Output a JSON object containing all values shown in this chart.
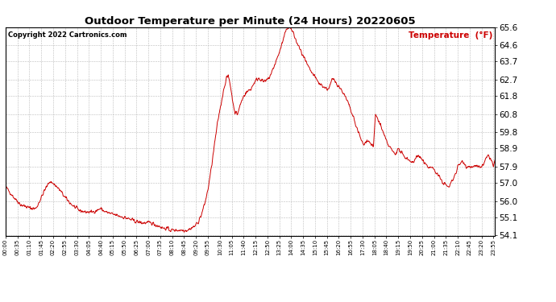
{
  "title": "Outdoor Temperature per Minute (24 Hours) 20220605",
  "copyright_text": "Copyright 2022 Cartronics.com",
  "legend_label": "Temperature  (°F)",
  "line_color": "#cc0000",
  "background_color": "#ffffff",
  "grid_color": "#bbbbbb",
  "ylim": [
    54.1,
    65.6
  ],
  "yticks": [
    54.1,
    55.1,
    56.0,
    57.0,
    57.9,
    58.9,
    59.8,
    60.8,
    61.8,
    62.7,
    63.7,
    64.6,
    65.6
  ],
  "xlabel_times": [
    "00:00",
    "00:35",
    "01:10",
    "01:45",
    "02:20",
    "02:55",
    "03:30",
    "04:05",
    "04:40",
    "05:15",
    "05:50",
    "06:25",
    "07:00",
    "07:35",
    "08:10",
    "08:45",
    "09:20",
    "09:55",
    "10:30",
    "11:05",
    "11:40",
    "12:15",
    "12:50",
    "13:25",
    "14:00",
    "14:35",
    "15:10",
    "15:45",
    "16:20",
    "16:55",
    "17:30",
    "18:05",
    "18:40",
    "19:15",
    "19:50",
    "20:25",
    "21:00",
    "21:35",
    "22:10",
    "22:45",
    "23:20",
    "23:55"
  ],
  "waypoints": [
    [
      0,
      56.8
    ],
    [
      25,
      56.2
    ],
    [
      45,
      55.8
    ],
    [
      60,
      55.7
    ],
    [
      75,
      55.6
    ],
    [
      90,
      55.6
    ],
    [
      100,
      56.0
    ],
    [
      115,
      56.6
    ],
    [
      130,
      57.1
    ],
    [
      145,
      56.9
    ],
    [
      160,
      56.6
    ],
    [
      175,
      56.2
    ],
    [
      195,
      55.8
    ],
    [
      215,
      55.5
    ],
    [
      235,
      55.4
    ],
    [
      255,
      55.4
    ],
    [
      270,
      55.5
    ],
    [
      280,
      55.6
    ],
    [
      285,
      55.5
    ],
    [
      295,
      55.4
    ],
    [
      310,
      55.3
    ],
    [
      330,
      55.2
    ],
    [
      350,
      55.1
    ],
    [
      365,
      55.0
    ],
    [
      380,
      54.9
    ],
    [
      400,
      54.8
    ],
    [
      415,
      54.8
    ],
    [
      430,
      54.8
    ],
    [
      440,
      54.7
    ],
    [
      455,
      54.6
    ],
    [
      465,
      54.5
    ],
    [
      475,
      54.5
    ],
    [
      485,
      54.4
    ],
    [
      495,
      54.4
    ],
    [
      505,
      54.4
    ],
    [
      515,
      54.4
    ],
    [
      525,
      54.4
    ],
    [
      535,
      54.4
    ],
    [
      545,
      54.5
    ],
    [
      555,
      54.6
    ],
    [
      565,
      54.8
    ],
    [
      575,
      55.2
    ],
    [
      585,
      55.8
    ],
    [
      595,
      56.6
    ],
    [
      605,
      57.8
    ],
    [
      615,
      59.2
    ],
    [
      625,
      60.5
    ],
    [
      635,
      61.5
    ],
    [
      643,
      62.3
    ],
    [
      650,
      62.8
    ],
    [
      655,
      62.9
    ],
    [
      658,
      62.7
    ],
    [
      662,
      62.3
    ],
    [
      668,
      61.5
    ],
    [
      675,
      60.9
    ],
    [
      682,
      60.8
    ],
    [
      690,
      61.3
    ],
    [
      700,
      61.8
    ],
    [
      708,
      62.0
    ],
    [
      715,
      62.1
    ],
    [
      722,
      62.2
    ],
    [
      730,
      62.5
    ],
    [
      738,
      62.7
    ],
    [
      745,
      62.8
    ],
    [
      752,
      62.7
    ],
    [
      758,
      62.6
    ],
    [
      765,
      62.6
    ],
    [
      775,
      62.8
    ],
    [
      785,
      63.2
    ],
    [
      795,
      63.7
    ],
    [
      805,
      64.2
    ],
    [
      815,
      64.8
    ],
    [
      823,
      65.3
    ],
    [
      830,
      65.6
    ],
    [
      835,
      65.6
    ],
    [
      840,
      65.5
    ],
    [
      848,
      65.2
    ],
    [
      855,
      64.8
    ],
    [
      863,
      64.5
    ],
    [
      870,
      64.2
    ],
    [
      878,
      63.9
    ],
    [
      885,
      63.6
    ],
    [
      893,
      63.3
    ],
    [
      900,
      63.1
    ],
    [
      908,
      62.9
    ],
    [
      915,
      62.7
    ],
    [
      922,
      62.5
    ],
    [
      930,
      62.4
    ],
    [
      937,
      62.3
    ],
    [
      945,
      62.2
    ],
    [
      950,
      62.2
    ],
    [
      955,
      62.4
    ],
    [
      960,
      62.7
    ],
    [
      965,
      62.7
    ],
    [
      970,
      62.6
    ],
    [
      978,
      62.4
    ],
    [
      985,
      62.2
    ],
    [
      993,
      62.0
    ],
    [
      1000,
      61.7
    ],
    [
      1008,
      61.4
    ],
    [
      1015,
      61.0
    ],
    [
      1023,
      60.6
    ],
    [
      1030,
      60.2
    ],
    [
      1038,
      59.8
    ],
    [
      1045,
      59.4
    ],
    [
      1053,
      59.1
    ],
    [
      1058,
      59.2
    ],
    [
      1063,
      59.4
    ],
    [
      1068,
      59.3
    ],
    [
      1073,
      59.2
    ],
    [
      1078,
      59.1
    ],
    [
      1082,
      59.0
    ],
    [
      1088,
      60.8
    ],
    [
      1095,
      60.5
    ],
    [
      1103,
      60.2
    ],
    [
      1110,
      59.8
    ],
    [
      1118,
      59.4
    ],
    [
      1125,
      59.1
    ],
    [
      1133,
      58.9
    ],
    [
      1140,
      58.7
    ],
    [
      1148,
      58.6
    ],
    [
      1152,
      58.9
    ],
    [
      1158,
      58.8
    ],
    [
      1163,
      58.7
    ],
    [
      1170,
      58.5
    ],
    [
      1178,
      58.4
    ],
    [
      1185,
      58.3
    ],
    [
      1193,
      58.2
    ],
    [
      1200,
      58.1
    ],
    [
      1208,
      58.5
    ],
    [
      1213,
      58.5
    ],
    [
      1220,
      58.4
    ],
    [
      1228,
      58.2
    ],
    [
      1235,
      58.0
    ],
    [
      1243,
      57.9
    ],
    [
      1250,
      57.9
    ],
    [
      1258,
      57.8
    ],
    [
      1265,
      57.6
    ],
    [
      1273,
      57.4
    ],
    [
      1280,
      57.2
    ],
    [
      1288,
      57.0
    ],
    [
      1295,
      56.9
    ],
    [
      1300,
      56.8
    ],
    [
      1305,
      56.8
    ],
    [
      1310,
      57.0
    ],
    [
      1318,
      57.3
    ],
    [
      1325,
      57.6
    ],
    [
      1330,
      57.9
    ],
    [
      1338,
      58.1
    ],
    [
      1345,
      58.2
    ],
    [
      1350,
      58.1
    ],
    [
      1355,
      57.9
    ],
    [
      1360,
      57.9
    ],
    [
      1365,
      57.9
    ],
    [
      1370,
      57.9
    ],
    [
      1375,
      57.9
    ],
    [
      1380,
      57.9
    ],
    [
      1385,
      57.9
    ],
    [
      1390,
      57.9
    ],
    [
      1395,
      57.9
    ],
    [
      1400,
      57.9
    ],
    [
      1405,
      58.0
    ],
    [
      1410,
      58.2
    ],
    [
      1415,
      58.4
    ],
    [
      1420,
      58.5
    ],
    [
      1425,
      58.4
    ],
    [
      1430,
      58.2
    ],
    [
      1435,
      57.9
    ],
    [
      1439,
      58.2
    ]
  ]
}
